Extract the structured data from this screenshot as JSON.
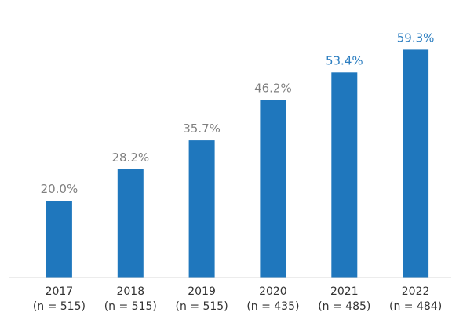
{
  "chart_data": {
    "type": "bar",
    "categories": [
      "2017",
      "2018",
      "2019",
      "2020",
      "2021",
      "2022"
    ],
    "category_sublabels": [
      "(n = 515)",
      "(n = 515)",
      "(n = 515)",
      "(n = 435)",
      "(n = 485)",
      "(n = 484)"
    ],
    "values": [
      20.0,
      28.2,
      35.7,
      46.2,
      53.4,
      59.3
    ],
    "data_labels": [
      "20.0%",
      "28.2%",
      "35.7%",
      "46.2%",
      "53.4%",
      "59.3%"
    ],
    "title": "",
    "xlabel": "",
    "ylabel": "",
    "ylim": [
      0,
      100
    ],
    "grid": false,
    "colors": {
      "bar": "#1f77bd",
      "label_default": "#7f7f7f",
      "label_highlight": "#2e7fc1",
      "axis": "#d9d9d9"
    },
    "highlighted_categories": [
      "2021",
      "2022"
    ]
  }
}
